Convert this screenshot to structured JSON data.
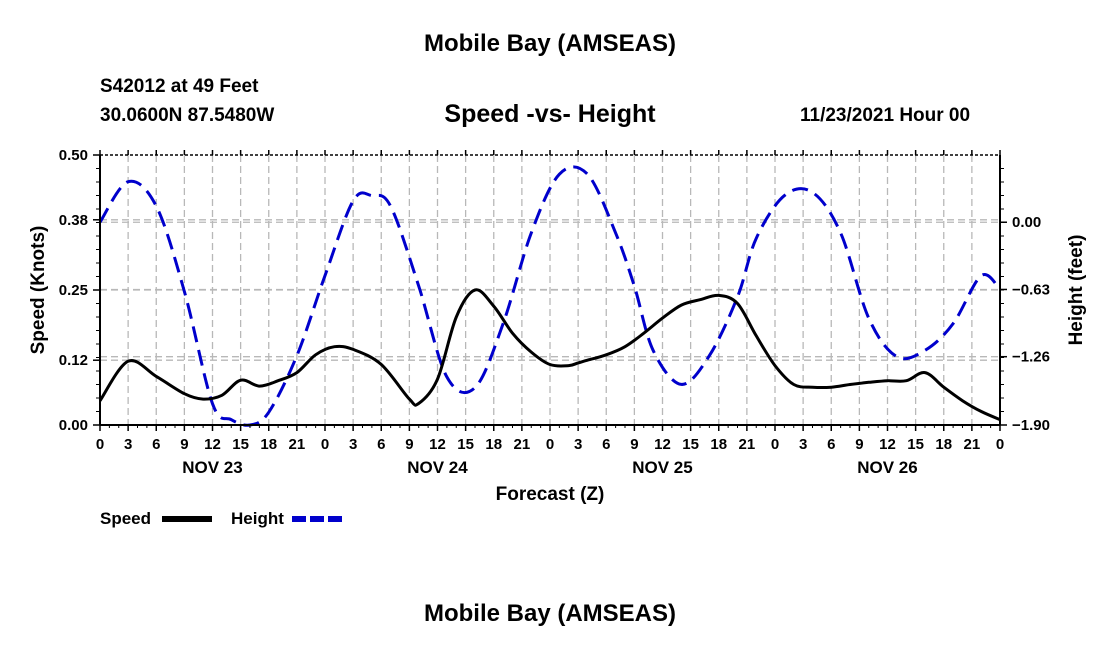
{
  "header": {
    "title": "Mobile Bay (AMSEAS)",
    "station": "S42012 at 49 Feet",
    "coords": "30.0600N  87.5480W",
    "subtitle": "Speed -vs- Height",
    "datetime": "11/23/2021 Hour 00"
  },
  "footer": {
    "title": "Mobile Bay (AMSEAS)"
  },
  "chart_data": {
    "type": "line",
    "title": "Speed -vs- Height",
    "xlabel": "Forecast (Z)",
    "ylabel_left": "Speed (Knots)",
    "ylabel_right": "Height (feet)",
    "x_range_hours": [
      0,
      96
    ],
    "x_tick_labels": [
      "0",
      "3",
      "6",
      "9",
      "12",
      "15",
      "18",
      "21",
      "0",
      "3",
      "6",
      "9",
      "12",
      "15",
      "18",
      "21",
      "0",
      "3",
      "6",
      "9",
      "12",
      "15",
      "18",
      "21",
      "0",
      "3",
      "6",
      "9",
      "12",
      "15",
      "18",
      "21",
      "0"
    ],
    "day_labels": [
      {
        "hour": 12,
        "label": "NOV 23"
      },
      {
        "hour": 36,
        "label": "NOV 24"
      },
      {
        "hour": 60,
        "label": "NOV 25"
      },
      {
        "hour": 84,
        "label": "NOV 26"
      }
    ],
    "ylim_left": [
      0,
      0.5
    ],
    "yticks_left": [
      "0.00",
      "0.12",
      "0.25",
      "0.38",
      "0.50"
    ],
    "ylim_right": [
      -1.9,
      0.63
    ],
    "yticks_right": [
      {
        "value": 0.0,
        "label": "0.00"
      },
      {
        "value": -0.63,
        "label": "−0.63"
      },
      {
        "value": -1.26,
        "label": "−1.26"
      },
      {
        "value": -1.9,
        "label": "−1.90"
      }
    ],
    "grid": true,
    "series": [
      {
        "name": "Speed",
        "axis": "left",
        "color": "#000000",
        "style": "solid",
        "x": [
          0,
          3,
          6,
          9,
          11,
          13,
          15,
          17,
          19,
          21,
          23,
          25,
          27,
          30,
          33,
          34,
          36,
          38,
          40,
          42,
          44,
          46,
          48,
          50,
          51,
          52,
          54,
          56,
          58,
          60,
          62,
          64,
          66,
          68,
          70,
          72,
          74,
          76,
          78,
          80,
          82,
          84,
          86,
          88,
          90,
          92,
          94,
          96
        ],
        "values": [
          0.045,
          0.118,
          0.09,
          0.058,
          0.048,
          0.055,
          0.083,
          0.072,
          0.082,
          0.097,
          0.13,
          0.145,
          0.14,
          0.112,
          0.048,
          0.04,
          0.085,
          0.2,
          0.25,
          0.22,
          0.17,
          0.135,
          0.112,
          0.11,
          0.115,
          0.12,
          0.13,
          0.145,
          0.17,
          0.198,
          0.222,
          0.232,
          0.24,
          0.225,
          0.165,
          0.11,
          0.075,
          0.07,
          0.07,
          0.075,
          0.079,
          0.082,
          0.082,
          0.097,
          0.07,
          0.045,
          0.025,
          0.01
        ]
      },
      {
        "name": "Height",
        "axis": "right",
        "color": "#0000cc",
        "style": "dashed",
        "x": [
          0,
          3,
          6,
          9,
          12,
          14,
          16,
          18,
          21,
          24,
          27,
          29,
          31,
          34,
          37,
          40,
          43,
          46,
          49,
          52,
          55,
          57,
          59,
          62,
          65,
          68,
          70,
          73,
          76,
          79,
          82,
          85,
          88,
          91,
          94,
          96
        ],
        "values": [
          0.0,
          0.38,
          0.15,
          -0.65,
          -1.7,
          -1.85,
          -1.9,
          -1.78,
          -1.25,
          -0.5,
          0.2,
          0.25,
          0.15,
          -0.6,
          -1.45,
          -1.55,
          -0.95,
          -0.1,
          0.45,
          0.45,
          -0.1,
          -0.6,
          -1.2,
          -1.52,
          -1.25,
          -0.7,
          -0.15,
          0.25,
          0.28,
          -0.1,
          -0.9,
          -1.26,
          -1.2,
          -0.95,
          -0.5,
          -0.63
        ]
      }
    ],
    "legend": [
      {
        "label": "Speed",
        "color": "#000000",
        "style": "solid"
      },
      {
        "label": "Height",
        "color": "#0000cc",
        "style": "dashed"
      }
    ]
  }
}
